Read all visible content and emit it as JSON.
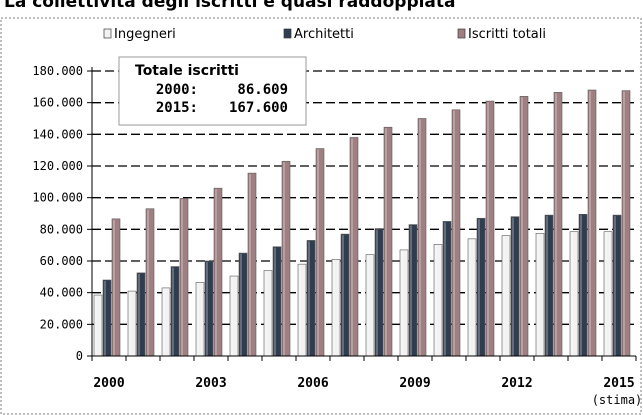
{
  "chart_data": {
    "type": "bar",
    "title": "La collettività degli iscritti è quasi raddoppiata",
    "categories": [
      "2000",
      "2001",
      "2002",
      "2003",
      "2004",
      "2005",
      "2006",
      "2007",
      "2008",
      "2009",
      "2010",
      "2011",
      "2012",
      "2013",
      "2014",
      "2015"
    ],
    "x_tick_labels": [
      "2000",
      "2003",
      "2006",
      "2009",
      "2012",
      "2015"
    ],
    "x_tick_sublabel": "(stima)",
    "y_tick_labels": [
      "0",
      "20.000",
      "40.000",
      "60.000",
      "80.000",
      "100.000",
      "120.000",
      "140.000",
      "160.000",
      "180.000"
    ],
    "ylim": [
      0,
      180000
    ],
    "grid": "horizontal dashed",
    "legend_position": "top",
    "series": [
      {
        "name": "Ingegneri",
        "color": "#f2f2f2",
        "values": [
          38500,
          41000,
          43000,
          46500,
          50500,
          54000,
          58000,
          61000,
          64000,
          67000,
          70500,
          74000,
          76000,
          77500,
          78500,
          78500
        ]
      },
      {
        "name": "Architetti",
        "color": "#2f3d4f",
        "values": [
          48000,
          52500,
          56500,
          60000,
          65000,
          69000,
          73000,
          77000,
          80500,
          83000,
          85000,
          87000,
          88000,
          89000,
          89500,
          89000
        ]
      },
      {
        "name": "Iscritti totali",
        "color": "#a07f83",
        "values": [
          86609,
          93000,
          99500,
          106000,
          115500,
          123000,
          131000,
          138000,
          144500,
          150000,
          155500,
          161000,
          164000,
          166500,
          168000,
          167600
        ]
      }
    ],
    "annotation": {
      "title": "Totale iscritti",
      "lines": [
        {
          "label": "2000:",
          "value": "86.609"
        },
        {
          "label": "2015:",
          "value": "167.600"
        }
      ]
    }
  }
}
